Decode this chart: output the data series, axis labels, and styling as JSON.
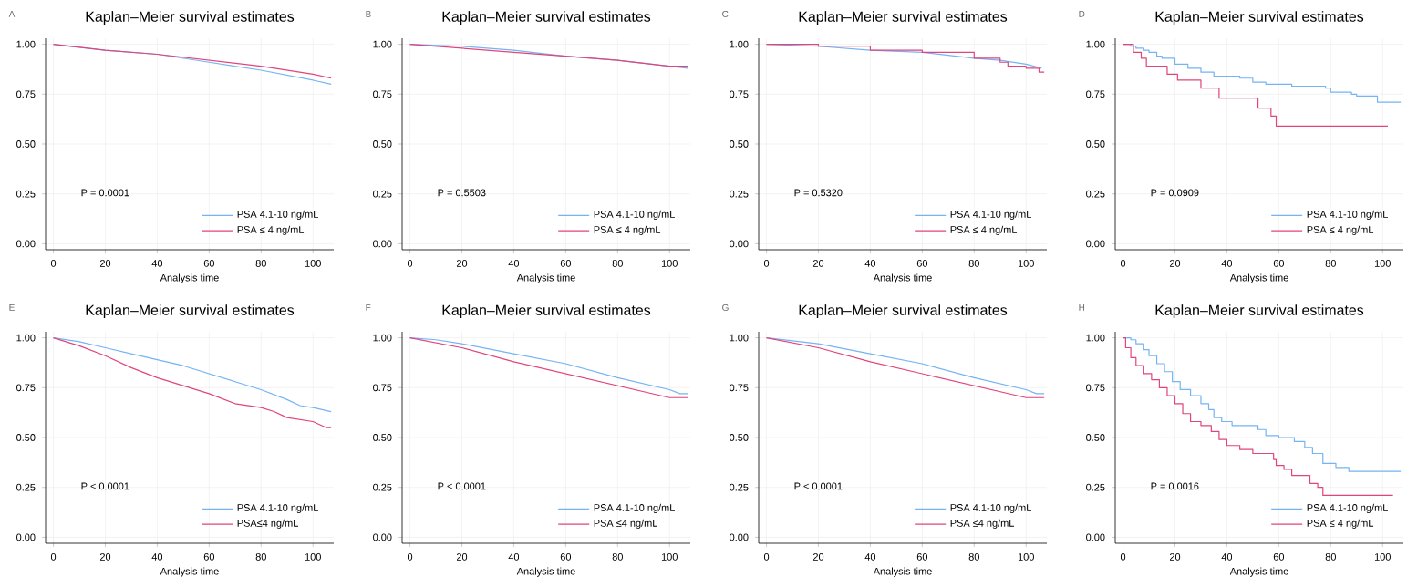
{
  "chart_data": [
    {
      "type": "line",
      "title": "Kaplan–Meier survival estimates",
      "xlabel": "Analysis time",
      "annotations": [
        "A",
        "P = 0.0001"
      ],
      "xlim": [
        -3,
        108
      ],
      "ylim": [
        -0.03,
        1.03
      ],
      "xticks": [
        0,
        20,
        40,
        60,
        80,
        100
      ],
      "yticks": [
        {
          "value": 0,
          "label": "0.00"
        },
        {
          "value": 0.25,
          "label": "0.25"
        },
        {
          "value": 0.5,
          "label": "0.50"
        },
        {
          "value": 0.75,
          "label": "0.75"
        },
        {
          "value": 1,
          "label": "1.00"
        }
      ],
      "grid": true,
      "legend": "bottom right",
      "series": [
        {
          "name": "PSA 4.1-10 ng/mL",
          "color": "#74b4f4",
          "x": [
            0,
            20,
            40,
            60,
            80,
            100,
            107
          ],
          "values": [
            1,
            0.97,
            0.95,
            0.91,
            0.87,
            0.82,
            0.8
          ]
        },
        {
          "name": "PSA ≤ 4 ng/mL",
          "color": "#e0457b",
          "x": [
            0,
            20,
            40,
            60,
            80,
            100,
            107
          ],
          "values": [
            1,
            0.97,
            0.95,
            0.92,
            0.89,
            0.85,
            0.83
          ]
        }
      ]
    },
    {
      "type": "line",
      "title": "Kaplan–Meier survival estimates",
      "xlabel": "Analysis time",
      "annotations": [
        "B",
        "P = 0.5503"
      ],
      "xlim": [
        -3,
        108
      ],
      "ylim": [
        -0.03,
        1.03
      ],
      "xticks": [
        0,
        20,
        40,
        60,
        80,
        100
      ],
      "yticks": [
        {
          "value": 0,
          "label": "0.00"
        },
        {
          "value": 0.25,
          "label": "0.25"
        },
        {
          "value": 0.5,
          "label": "0.50"
        },
        {
          "value": 0.75,
          "label": "0.75"
        },
        {
          "value": 1,
          "label": "1.00"
        }
      ],
      "grid": true,
      "legend": "bottom right",
      "series": [
        {
          "name": "PSA 4.1-10 ng/mL",
          "color": "#74b4f4",
          "x": [
            0,
            20,
            40,
            60,
            80,
            100,
            107
          ],
          "values": [
            1,
            0.99,
            0.97,
            0.94,
            0.92,
            0.89,
            0.88
          ]
        },
        {
          "name": "PSA ≤ 4 ng/mL",
          "color": "#e0457b",
          "x": [
            0,
            20,
            40,
            60,
            80,
            100,
            107
          ],
          "values": [
            1,
            0.98,
            0.96,
            0.94,
            0.92,
            0.89,
            0.89
          ]
        }
      ]
    },
    {
      "type": "line",
      "title": "Kaplan–Meier survival estimates",
      "xlabel": "Analysis time",
      "annotations": [
        "C",
        "P = 0.5320"
      ],
      "xlim": [
        -3,
        108
      ],
      "ylim": [
        -0.03,
        1.03
      ],
      "xticks": [
        0,
        20,
        40,
        60,
        80,
        100
      ],
      "yticks": [
        {
          "value": 0,
          "label": "0.00"
        },
        {
          "value": 0.25,
          "label": "0.25"
        },
        {
          "value": 0.5,
          "label": "0.50"
        },
        {
          "value": 0.75,
          "label": "0.75"
        },
        {
          "value": 1,
          "label": "1.00"
        }
      ],
      "grid": true,
      "legend": "bottom right",
      "series": [
        {
          "name": "PSA 4.1-10 ng/mL",
          "color": "#74b4f4",
          "x": [
            0,
            20,
            40,
            60,
            80,
            90,
            100,
            106
          ],
          "values": [
            1,
            0.99,
            0.97,
            0.96,
            0.93,
            0.92,
            0.9,
            0.88
          ]
        },
        {
          "name": "PSA ≤ 4 ng/mL",
          "color": "#e0457b",
          "type": "step",
          "x": [
            0,
            20,
            40,
            60,
            80,
            90,
            93,
            100,
            105,
            107
          ],
          "values": [
            1,
            0.99,
            0.97,
            0.96,
            0.93,
            0.91,
            0.89,
            0.88,
            0.86,
            0.86
          ]
        }
      ]
    },
    {
      "type": "step",
      "title": "Kaplan–Meier survival estimates",
      "xlabel": "Analysis time",
      "annotations": [
        "D",
        "P = 0.0909"
      ],
      "xlim": [
        -3,
        108
      ],
      "ylim": [
        -0.03,
        1.03
      ],
      "xticks": [
        0,
        20,
        40,
        60,
        80,
        100
      ],
      "yticks": [
        {
          "value": 0,
          "label": "0.00"
        },
        {
          "value": 0.25,
          "label": "0.25"
        },
        {
          "value": 0.5,
          "label": "0.50"
        },
        {
          "value": 0.75,
          "label": "0.75"
        },
        {
          "value": 1,
          "label": "1.00"
        }
      ],
      "grid": true,
      "legend": "bottom right",
      "series": [
        {
          "name": "PSA 4.1-10 ng/mL",
          "color": "#74b4f4",
          "x": [
            0,
            3,
            5,
            8,
            10,
            13,
            15,
            20,
            25,
            30,
            35,
            45,
            50,
            55,
            65,
            78,
            80,
            88,
            90,
            98,
            107
          ],
          "values": [
            1,
            0.99,
            0.98,
            0.97,
            0.96,
            0.94,
            0.93,
            0.9,
            0.88,
            0.86,
            0.84,
            0.83,
            0.81,
            0.8,
            0.79,
            0.78,
            0.76,
            0.75,
            0.74,
            0.71,
            0.71
          ]
        },
        {
          "name": "PSA ≤ 4 ng/mL",
          "color": "#e0457b",
          "x": [
            0,
            4,
            7,
            9,
            17,
            21,
            30,
            37,
            52,
            57,
            59,
            102
          ],
          "values": [
            1,
            0.96,
            0.93,
            0.89,
            0.85,
            0.82,
            0.78,
            0.73,
            0.68,
            0.64,
            0.59,
            0.59
          ]
        }
      ]
    },
    {
      "type": "line",
      "title": "Kaplan–Meier survival estimates",
      "xlabel": "Analysis time",
      "annotations": [
        "E",
        "P < 0.0001"
      ],
      "xlim": [
        -3,
        108
      ],
      "ylim": [
        -0.03,
        1.03
      ],
      "xticks": [
        0,
        20,
        40,
        60,
        80,
        100
      ],
      "yticks": [
        {
          "value": 0,
          "label": "0.00"
        },
        {
          "value": 0.25,
          "label": "0.25"
        },
        {
          "value": 0.5,
          "label": "0.50"
        },
        {
          "value": 0.75,
          "label": "0.75"
        },
        {
          "value": 1,
          "label": "1.00"
        }
      ],
      "grid": true,
      "legend": "bottom right",
      "series": [
        {
          "name": "PSA 4.1-10 ng/mL",
          "color": "#74b4f4",
          "x": [
            0,
            10,
            20,
            30,
            40,
            50,
            60,
            70,
            80,
            90,
            95,
            100,
            107
          ],
          "values": [
            1,
            0.98,
            0.95,
            0.92,
            0.89,
            0.86,
            0.82,
            0.78,
            0.74,
            0.69,
            0.66,
            0.65,
            0.63
          ]
        },
        {
          "name": "PSA≤4 ng/mL",
          "color": "#e0457b",
          "x": [
            0,
            10,
            20,
            30,
            40,
            50,
            60,
            70,
            80,
            85,
            90,
            100,
            105,
            107
          ],
          "values": [
            1,
            0.96,
            0.91,
            0.85,
            0.8,
            0.76,
            0.72,
            0.67,
            0.65,
            0.63,
            0.6,
            0.58,
            0.55,
            0.55
          ]
        }
      ]
    },
    {
      "type": "line",
      "title": "Kaplan–Meier survival estimates",
      "xlabel": "Analysis time",
      "annotations": [
        "F",
        "P < 0.0001"
      ],
      "xlim": [
        -3,
        108
      ],
      "ylim": [
        -0.03,
        1.03
      ],
      "xticks": [
        0,
        20,
        40,
        60,
        80,
        100
      ],
      "yticks": [
        {
          "value": 0,
          "label": "0.00"
        },
        {
          "value": 0.25,
          "label": "0.25"
        },
        {
          "value": 0.5,
          "label": "0.50"
        },
        {
          "value": 0.75,
          "label": "0.75"
        },
        {
          "value": 1,
          "label": "1.00"
        }
      ],
      "grid": true,
      "legend": "bottom right",
      "series": [
        {
          "name": "PSA 4.1-10 ng/mL",
          "color": "#74b4f4",
          "x": [
            0,
            10,
            20,
            40,
            60,
            80,
            100,
            104,
            107
          ],
          "values": [
            1,
            0.99,
            0.97,
            0.92,
            0.87,
            0.8,
            0.74,
            0.72,
            0.72
          ]
        },
        {
          "name": "PSA ≤4 ng/mL",
          "color": "#e0457b",
          "x": [
            0,
            20,
            40,
            60,
            80,
            100,
            107
          ],
          "values": [
            1,
            0.95,
            0.88,
            0.82,
            0.76,
            0.7,
            0.7
          ]
        }
      ]
    },
    {
      "type": "line",
      "title": "Kaplan–Meier survival estimates",
      "xlabel": "Analysis time",
      "annotations": [
        "G",
        "P < 0.0001"
      ],
      "xlim": [
        -3,
        108
      ],
      "ylim": [
        -0.03,
        1.03
      ],
      "xticks": [
        0,
        20,
        40,
        60,
        80,
        100
      ],
      "yticks": [
        {
          "value": 0,
          "label": "0.00"
        },
        {
          "value": 0.25,
          "label": "0.25"
        },
        {
          "value": 0.5,
          "label": "0.50"
        },
        {
          "value": 0.75,
          "label": "0.75"
        },
        {
          "value": 1,
          "label": "1.00"
        }
      ],
      "grid": true,
      "legend": "bottom right",
      "series": [
        {
          "name": "PSA 4.1-10 ng/mL",
          "color": "#74b4f4",
          "x": [
            0,
            20,
            40,
            60,
            80,
            100,
            104,
            107
          ],
          "values": [
            1,
            0.97,
            0.92,
            0.87,
            0.8,
            0.74,
            0.72,
            0.72
          ]
        },
        {
          "name": "PSA ≤4 ng/mL",
          "color": "#e0457b",
          "x": [
            0,
            20,
            40,
            60,
            80,
            100,
            107
          ],
          "values": [
            1,
            0.95,
            0.88,
            0.82,
            0.76,
            0.7,
            0.7
          ]
        }
      ]
    },
    {
      "type": "step",
      "title": "Kaplan–Meier survival estimates",
      "xlabel": "Analysis time",
      "annotations": [
        "H",
        "P = 0.0016"
      ],
      "xlim": [
        -3,
        108
      ],
      "ylim": [
        -0.03,
        1.03
      ],
      "xticks": [
        0,
        20,
        40,
        60,
        80,
        100
      ],
      "yticks": [
        {
          "value": 0,
          "label": "0.00"
        },
        {
          "value": 0.25,
          "label": "0.25"
        },
        {
          "value": 0.5,
          "label": "0.50"
        },
        {
          "value": 0.75,
          "label": "0.75"
        },
        {
          "value": 1,
          "label": "1.00"
        }
      ],
      "grid": true,
      "legend": "bottom right",
      "series": [
        {
          "name": "PSA 4.1-10 ng/mL",
          "color": "#74b4f4",
          "x": [
            0,
            3,
            5,
            8,
            10,
            13,
            16,
            19,
            22,
            26,
            30,
            33,
            35,
            38,
            42,
            52,
            55,
            60,
            66,
            70,
            73,
            77,
            82,
            87,
            107
          ],
          "values": [
            1,
            0.99,
            0.97,
            0.94,
            0.91,
            0.87,
            0.83,
            0.78,
            0.74,
            0.71,
            0.67,
            0.64,
            0.6,
            0.58,
            0.56,
            0.54,
            0.51,
            0.5,
            0.48,
            0.45,
            0.42,
            0.37,
            0.35,
            0.33,
            0.33
          ]
        },
        {
          "name": "PSA ≤ 4 ng/mL",
          "color": "#e0457b",
          "x": [
            0,
            1,
            3,
            5,
            8,
            11,
            14,
            17,
            20,
            23,
            26,
            30,
            34,
            37,
            40,
            45,
            50,
            58,
            59,
            62,
            65,
            72,
            75,
            77,
            104
          ],
          "values": [
            1,
            0.95,
            0.9,
            0.86,
            0.82,
            0.79,
            0.75,
            0.71,
            0.67,
            0.62,
            0.58,
            0.56,
            0.53,
            0.49,
            0.46,
            0.44,
            0.42,
            0.39,
            0.36,
            0.34,
            0.31,
            0.27,
            0.25,
            0.21,
            0.21
          ]
        }
      ]
    }
  ]
}
